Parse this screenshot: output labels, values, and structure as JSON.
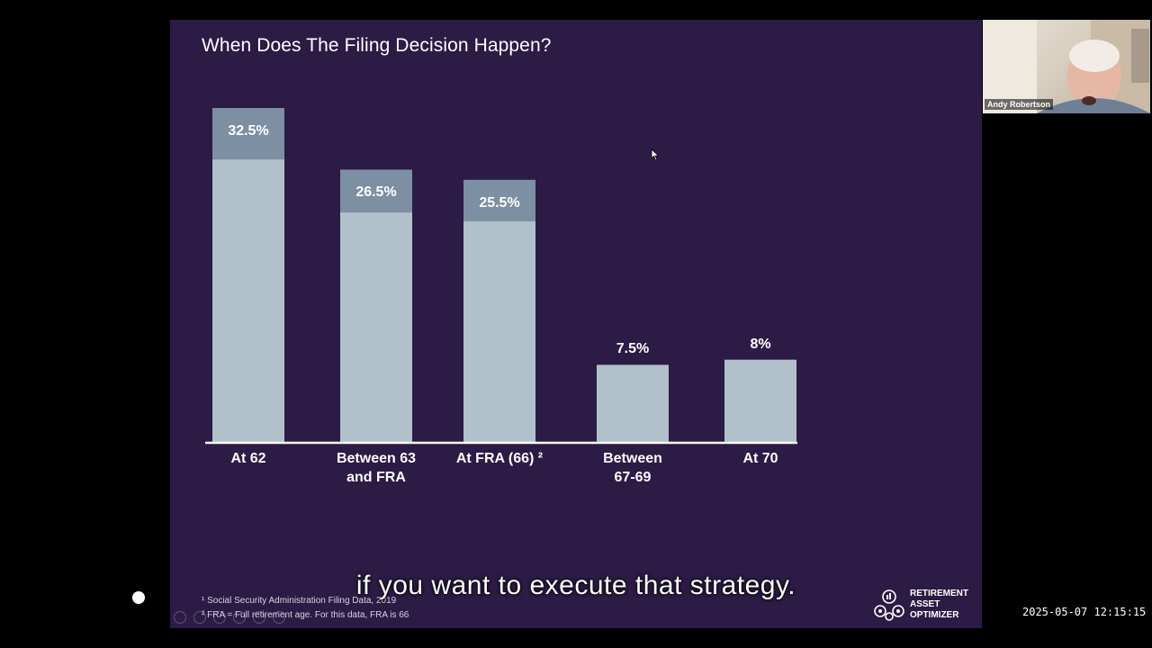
{
  "slide": {
    "title": "When Does The Filing Decision Happen?",
    "footnote_1": "¹ Social Security Administration Filing Data, 2019",
    "footnote_2": "² FRA = Full retirement age. For this data, FRA is 66",
    "logo": {
      "line1": "RETIREMENT",
      "line2": "ASSET",
      "line3": "OPTIMIZER",
      "icon": "gear-cluster-icon"
    }
  },
  "chart_data": {
    "type": "bar",
    "title": "When Does The Filing Decision Happen?",
    "categories": [
      "At 62",
      "Between 63 and FRA",
      "At FRA (66) ²",
      "Between 67-69",
      "At 70"
    ],
    "category_lines": [
      [
        "At 62"
      ],
      [
        "Between 63",
        "and FRA"
      ],
      [
        "At FRA (66) ²"
      ],
      [
        "Between",
        "67-69"
      ],
      [
        "At 70"
      ]
    ],
    "values": [
      32.5,
      26.5,
      25.5,
      7.5,
      8
    ],
    "value_labels": [
      "32.5%",
      "26.5%",
      "25.5%",
      "7.5%",
      "8%"
    ],
    "xlabel": "",
    "ylabel": "",
    "ylim": [
      0,
      32.5
    ],
    "grid": false,
    "bar_color": "#b1c1cb",
    "label_band_color": "#7d8fa3"
  },
  "caption": "if you want to execute that strategy.",
  "participant": {
    "name": "Andy Robertson"
  },
  "timestamp": "2025-05-07 12:15:15",
  "colors": {
    "slide_background": "#2b1b45",
    "page_background": "#000000"
  }
}
